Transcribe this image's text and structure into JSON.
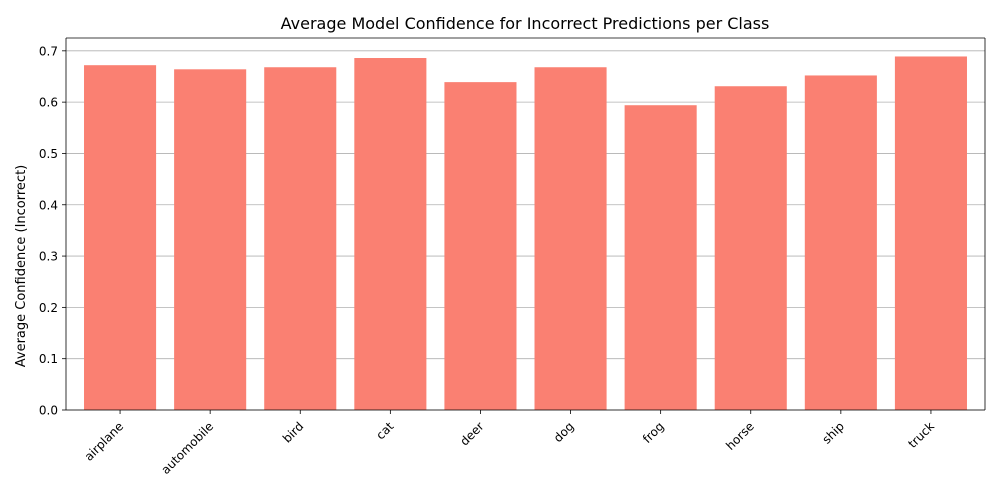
{
  "chart_data": {
    "type": "bar",
    "title": "Average Model Confidence for Incorrect Predictions per Class",
    "xlabel": "",
    "ylabel": "Average Confidence (Incorrect)",
    "categories": [
      "airplane",
      "automobile",
      "bird",
      "cat",
      "deer",
      "dog",
      "frog",
      "horse",
      "ship",
      "truck"
    ],
    "values": [
      0.672,
      0.664,
      0.668,
      0.686,
      0.639,
      0.668,
      0.594,
      0.631,
      0.652,
      0.689
    ],
    "ylim": [
      0,
      0.725
    ],
    "yticks": [
      0.0,
      0.1,
      0.2,
      0.3,
      0.4,
      0.5,
      0.6,
      0.7
    ],
    "ytick_labels": [
      "0.0",
      "0.1",
      "0.2",
      "0.3",
      "0.4",
      "0.5",
      "0.6",
      "0.7"
    ],
    "grid": "y-axis only",
    "bar_color": "#fa8072",
    "grid_color": "#b0b0b0",
    "xtick_rotation": 45
  }
}
